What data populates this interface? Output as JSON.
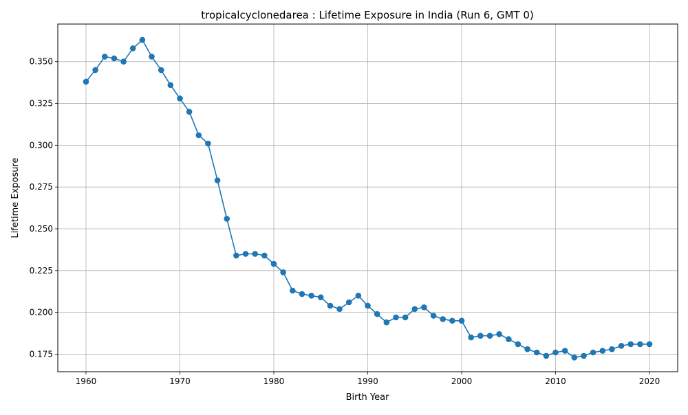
{
  "chart_data": {
    "type": "line",
    "title": "tropicalcyclonedarea : Lifetime Exposure in India (Run 6, GMT 0)",
    "xlabel": "Birth Year",
    "ylabel": "Lifetime Exposure",
    "xlim": [
      1957,
      2023
    ],
    "ylim": [
      0.1645,
      0.3725
    ],
    "xticks": [
      1960,
      1970,
      1980,
      1990,
      2000,
      2010,
      2020
    ],
    "yticks": [
      0.175,
      0.2,
      0.225,
      0.25,
      0.275,
      0.3,
      0.325,
      0.35
    ],
    "grid": true,
    "line_color": "#1f77b4",
    "x": [
      1960,
      1961,
      1962,
      1963,
      1964,
      1965,
      1966,
      1967,
      1968,
      1969,
      1970,
      1971,
      1972,
      1973,
      1974,
      1975,
      1976,
      1977,
      1978,
      1979,
      1980,
      1981,
      1982,
      1983,
      1984,
      1985,
      1986,
      1987,
      1988,
      1989,
      1990,
      1991,
      1992,
      1993,
      1994,
      1995,
      1996,
      1997,
      1998,
      1999,
      2000,
      2001,
      2002,
      2003,
      2004,
      2005,
      2006,
      2007,
      2008,
      2009,
      2010,
      2011,
      2012,
      2013,
      2014,
      2015,
      2016,
      2017,
      2018,
      2019,
      2020
    ],
    "y": [
      0.338,
      0.345,
      0.353,
      0.352,
      0.35,
      0.358,
      0.363,
      0.353,
      0.345,
      0.336,
      0.328,
      0.32,
      0.306,
      0.301,
      0.279,
      0.256,
      0.234,
      0.235,
      0.235,
      0.234,
      0.229,
      0.224,
      0.213,
      0.211,
      0.21,
      0.209,
      0.204,
      0.202,
      0.206,
      0.21,
      0.204,
      0.199,
      0.194,
      0.197,
      0.197,
      0.202,
      0.203,
      0.198,
      0.196,
      0.195,
      0.195,
      0.185,
      0.186,
      0.186,
      0.187,
      0.184,
      0.181,
      0.178,
      0.176,
      0.174,
      0.176,
      0.177,
      0.173,
      0.174,
      0.176,
      0.177,
      0.178,
      0.18,
      0.181,
      0.181,
      0.181
    ]
  }
}
